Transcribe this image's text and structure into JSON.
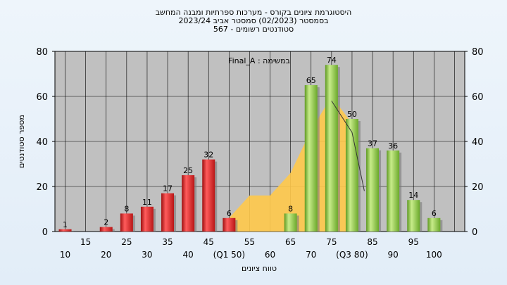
{
  "header": {
    "title_line1": "היסטוגרמת ציונים בקורס - מערכות ספרתיות ומבנה המחשב",
    "title_line2": "בסמסטר  (02/2023)  סמסטר אביב 2023/24",
    "title_line3": "סטודנטים רשומים - 567"
  },
  "chart_data": {
    "type": "bar",
    "annotation": "במשימה : Final_A",
    "ylabel": "מספר סטודנטים",
    "xlabel": "טווח ציונים",
    "ylim": [
      0,
      80
    ],
    "yticks": [
      0,
      20,
      40,
      60,
      80
    ],
    "grid": true,
    "x_ticks_lower": [
      "10",
      "20",
      "30",
      "40",
      "(Q1 50)",
      "60",
      "70",
      "(Q3 80)",
      "90",
      "100"
    ],
    "x_ticks_upper": [
      "15",
      "25",
      "35",
      "45",
      "55",
      "65",
      "75",
      "85",
      "95"
    ],
    "series": [
      {
        "kind": "bar",
        "x": [
          10,
          20,
          25,
          30,
          35,
          40,
          45,
          50,
          65,
          70,
          75,
          80,
          85,
          90,
          95,
          100
        ],
        "values": [
          1,
          2,
          8,
          11,
          17,
          25,
          32,
          6,
          8,
          65,
          74,
          50,
          37,
          36,
          14,
          6
        ],
        "fail_color": "#d42020",
        "pass_color": "#8cc43c",
        "pass_threshold": 55
      },
      {
        "kind": "area",
        "color": "#ffc94a",
        "x": [
          50,
          55,
          60,
          65,
          70,
          75,
          80
        ],
        "values": [
          6,
          16,
          16,
          26,
          45,
          60,
          48
        ]
      },
      {
        "kind": "line",
        "color": "#333333",
        "x": [
          75,
          80,
          83
        ],
        "values": [
          58,
          44,
          18
        ]
      }
    ]
  }
}
